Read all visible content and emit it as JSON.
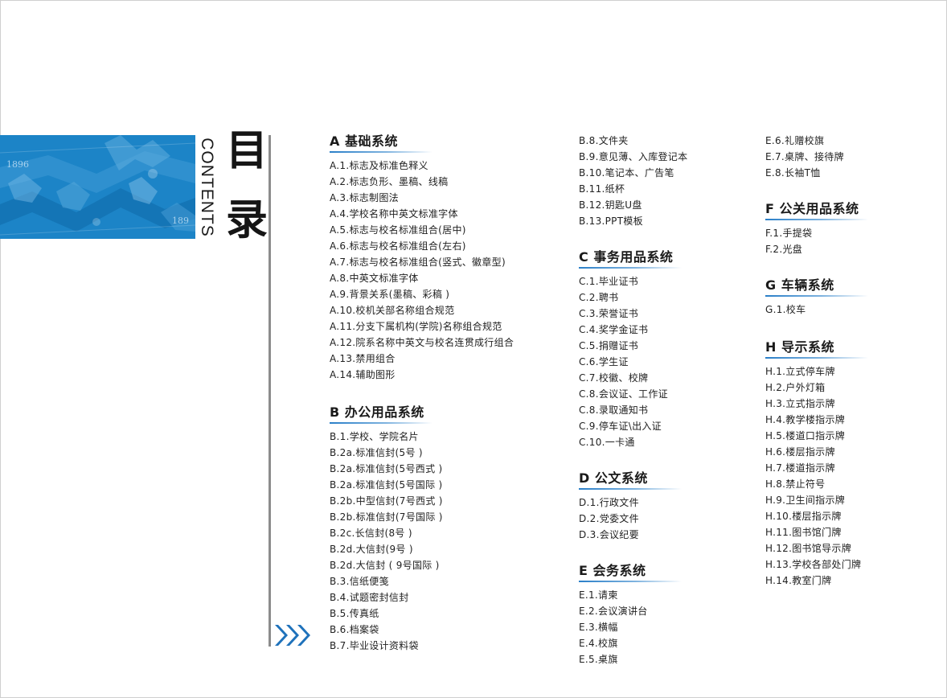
{
  "title": {
    "main_char1": "目",
    "main_char2": "录",
    "english": "CONTENTS"
  },
  "banner": {
    "year_left": "1896",
    "year_right": "189"
  },
  "colors": {
    "accent": "#1c84c7",
    "arrow": "#1f72bb",
    "divider": "#8c8c8c"
  },
  "columns": [
    {
      "sections": [
        {
          "title": "A 基础系统",
          "items": [
            "A.1.标志及标准色释义",
            "A.2.标志负形、墨稿、线稿",
            "A.3.标志制图法",
            "A.4.学校名称中英文标准字体",
            "A.5.标志与校名标准组合(居中)",
            "A.6.标志与校名标准组合(左右)",
            "A.7.标志与校名标准组合(竖式、徽章型)",
            "A.8.中英文标准字体",
            "A.9.背景关系(墨稿、彩稿 )",
            "A.10.校机关部名称组合规范",
            "A.11.分支下属机构(学院)名称组合规范",
            "A.12.院系名称中英文与校名连贯成行组合",
            "A.13.禁用组合",
            "A.14.辅助图形"
          ]
        },
        {
          "title": "B 办公用品系统",
          "items": [
            "B.1.学校、学院名片",
            "B.2a.标准信封(5号 )",
            "B.2a.标准信封(5号西式 )",
            "B.2a.标准信封(5号国际 )",
            "B.2b.中型信封(7号西式 )",
            "B.2b.标准信封(7号国际 )",
            "B.2c.长信封(8号 )",
            "B.2d.大信封(9号 )",
            "B.2d.大信封 ( 9号国际 )",
            "B.3.信纸便笺",
            "B.4.试题密封信封",
            "B.5.传真纸",
            "B.6.档案袋",
            "B.7.毕业设计资料袋"
          ]
        }
      ]
    },
    {
      "lead_items": [
        "B.8.文件夹",
        "B.9.意见薄、入库登记本",
        "B.10.笔记本、广告笔",
        "B.11.纸杯",
        "B.12.钥匙U盘",
        "B.13.PPT模板"
      ],
      "sections": [
        {
          "title": "C 事务用品系统",
          "items": [
            "C.1.毕业证书",
            "C.2.聘书",
            "C.3.荣誉证书",
            "C.4.奖学金证书",
            "C.5.捐赠证书",
            "C.6.学生证",
            "C.7.校徽、校牌",
            "C.8.会议证、工作证",
            "C.8.录取通知书",
            "C.9.停车证\\出入证",
            "C.10.一卡通"
          ]
        },
        {
          "title": "D 公文系统",
          "items": [
            "D.1.行政文件",
            "D.2.党委文件",
            "D.3.会议纪要"
          ]
        },
        {
          "title": "E 会务系统",
          "items": [
            "E.1.请柬",
            "E.2.会议演讲台",
            "E.3.横幅",
            "E.4.校旗",
            "E.5.桌旗"
          ]
        }
      ]
    },
    {
      "lead_items": [
        "E.6.礼赠校旗",
        "E.7.桌牌、接待牌",
        "E.8.长袖T恤"
      ],
      "sections": [
        {
          "title": "F 公关用品系统",
          "items": [
            "F.1.手提袋",
            "F.2.光盘"
          ]
        },
        {
          "title": "G 车辆系统",
          "items": [
            "G.1.校车"
          ]
        },
        {
          "title": "H 导示系统",
          "items": [
            "H.1.立式停车牌",
            "H.2.户外灯箱",
            "H.3.立式指示牌",
            "H.4.教学楼指示牌",
            "H.5.楼道口指示牌",
            "H.6.楼层指示牌",
            "H.7.楼道指示牌",
            "H.8.禁止符号",
            "H.9.卫生间指示牌",
            "H.10.楼层指示牌",
            "H.11.图书馆门牌",
            "H.12.图书馆导示牌",
            "H.13.学校各部处门牌",
            "H.14.教室门牌"
          ]
        }
      ]
    }
  ]
}
